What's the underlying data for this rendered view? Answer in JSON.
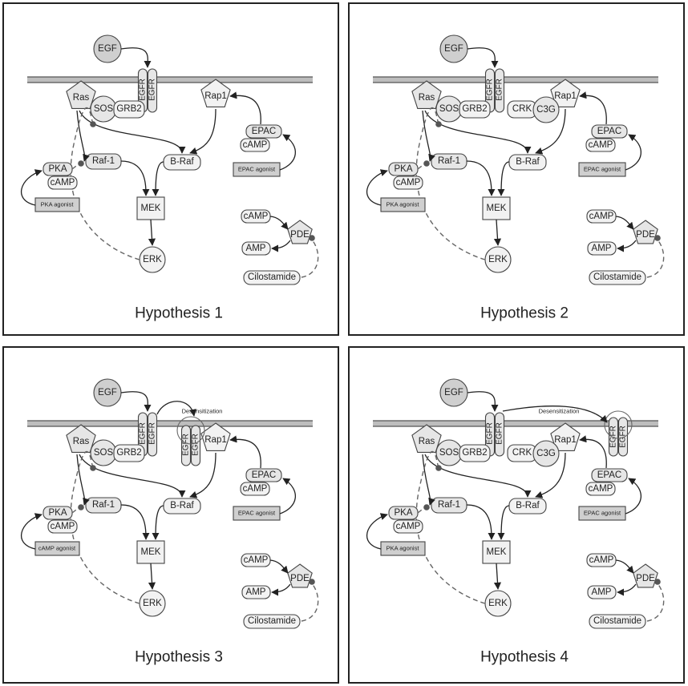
{
  "panels": [
    {
      "title": "Hypothesis 1",
      "has_crk_c3g": false,
      "desensitization": false,
      "cilostamide_link": "simple",
      "labels": {
        "egf": "EGF",
        "receptor": "EGFR",
        "ras": "Ras",
        "sos": "SOS",
        "grb2": "GRB2",
        "rap1": "Rap1",
        "epac": "EPAC",
        "camp": "cAMP",
        "raf1": "Raf-1",
        "braf": "B-Raf",
        "pka": "PKA",
        "mek": "MEK",
        "erk": "ERK",
        "pde": "PDE",
        "amp": "AMP",
        "cilostamide": "Cilostamide",
        "pka_agonist": "PKA agonist",
        "epac_agonist": "EPAC agonist"
      }
    },
    {
      "title": "Hypothesis 2",
      "has_crk_c3g": true,
      "desensitization": false,
      "labels": {
        "egf": "EGF",
        "receptor": "EGFR",
        "ras": "Ras",
        "sos": "SOS",
        "grb2": "GRB2",
        "crk": "CRK",
        "c3g": "C3G",
        "rap1": "Rap1",
        "epac": "EPAC",
        "camp": "cAMP",
        "raf1": "Raf-1",
        "braf": "B-Raf",
        "pka": "PKA",
        "mek": "MEK",
        "erk": "ERK",
        "pde": "PDE",
        "amp": "AMP",
        "cilostamide": "Cilostamide",
        "pka_agonist": "PKA agonist",
        "epac_agonist": "EPAC agonist"
      }
    },
    {
      "title": "Hypothesis 3",
      "has_crk_c3g": false,
      "desensitization": true,
      "labels": {
        "egf": "EGF",
        "receptor": "EGFR",
        "ras": "Ras",
        "sos": "SOS",
        "grb2": "GRB2",
        "rap1": "Rap1",
        "epac": "EPAC",
        "camp": "cAMP",
        "raf1": "Raf-1",
        "braf": "B-Raf",
        "pka": "PKA",
        "mek": "MEK",
        "erk": "ERK",
        "pde": "PDE",
        "amp": "AMP",
        "cilostamide": "Cilostamide",
        "pka_agonist": "cAMP agonist",
        "epac_agonist": "EPAC agonist",
        "desensitization": "Desensitization"
      }
    },
    {
      "title": "Hypothesis 4",
      "has_crk_c3g": true,
      "desensitization": true,
      "labels": {
        "egf": "EGF",
        "receptor": "EGFR",
        "ras": "Ras",
        "sos": "SOS",
        "grb2": "GRB2",
        "crk": "CRK",
        "c3g": "C3G",
        "rap1": "Rap1",
        "epac": "EPAC",
        "camp": "cAMP",
        "raf1": "Raf-1",
        "braf": "B-Raf",
        "pka": "PKA",
        "mek": "MEK",
        "erk": "ERK",
        "pde": "PDE",
        "amp": "AMP",
        "cilostamide": "Cilostamide",
        "pka_agonist": "PKA agonist",
        "epac_agonist": "EPAC agonist",
        "desensitization": "Desensitization"
      }
    }
  ],
  "colors": {
    "frame": "#222222",
    "node_fill": "#e6e6e6",
    "membrane": "#888888",
    "inhibition_line": "#666666"
  }
}
